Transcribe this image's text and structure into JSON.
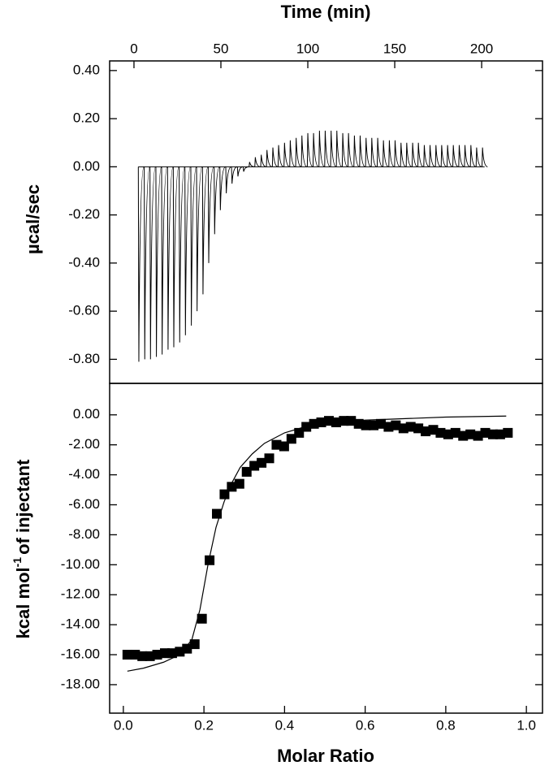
{
  "chart_data": [
    {
      "type": "thermogram",
      "x_label": "Time (min)",
      "y_label": "µcal/sec",
      "xlim": [
        -14,
        235
      ],
      "xticks": [
        0,
        50,
        100,
        150,
        200
      ],
      "ylim": [
        -0.9,
        0.44
      ],
      "yticks": [
        {
          "value": 0.4,
          "label": "0.40"
        },
        {
          "value": 0.2,
          "label": "0.20"
        },
        {
          "value": 0,
          "label": "0.00"
        },
        {
          "value": -0.2,
          "label": "-0.20"
        },
        {
          "value": -0.4,
          "label": "-0.40"
        },
        {
          "value": -0.6,
          "label": "-0.60"
        },
        {
          "value": -0.8,
          "label": "-0.80"
        }
      ],
      "series": [
        {
          "color": "#000000",
          "x": [
            2.5,
            5.9,
            9.2,
            12.6,
            15.9,
            19.3,
            22.6,
            26.0,
            29.3,
            32.7,
            36.0,
            39.4,
            42.7,
            46.1,
            49.4,
            52.8,
            56.1,
            59.5,
            62.8,
            66.2,
            69.5,
            72.9,
            76.2,
            79.6,
            82.9,
            86.3,
            89.6,
            93.0,
            96.3,
            99.7,
            103.0,
            106.4,
            109.7,
            113.1,
            116.4,
            119.8,
            123.1,
            126.5,
            129.8,
            133.2,
            136.5,
            139.9,
            143.2,
            146.6,
            149.9,
            153.3,
            156.6,
            160.0,
            163.3,
            166.7,
            170.0,
            173.4,
            176.7,
            180.1,
            183.4,
            186.8,
            190.1,
            193.5,
            196.8,
            200.2
          ],
          "values": [
            -0.81,
            -0.8,
            -0.8,
            -0.79,
            -0.78,
            -0.76,
            -0.75,
            -0.73,
            -0.7,
            -0.66,
            -0.6,
            -0.53,
            -0.4,
            -0.28,
            -0.18,
            -0.11,
            -0.07,
            -0.04,
            -0.02,
            0.02,
            0.04,
            0.05,
            0.07,
            0.08,
            0.09,
            0.1,
            0.11,
            0.12,
            0.13,
            0.14,
            0.14,
            0.15,
            0.15,
            0.15,
            0.15,
            0.14,
            0.14,
            0.13,
            0.13,
            0.12,
            0.12,
            0.12,
            0.11,
            0.11,
            0.11,
            0.1,
            0.1,
            0.1,
            0.1,
            0.09,
            0.09,
            0.09,
            0.09,
            0.09,
            0.09,
            0.09,
            0.09,
            0.09,
            0.08,
            0.08
          ]
        }
      ]
    },
    {
      "type": "scatter",
      "x_label": "Molar Ratio",
      "y_label": [
        "kcal mol",
        "-1",
        "of injectant"
      ],
      "xlim": [
        -0.034,
        1.04
      ],
      "xticks": [
        {
          "value": 0,
          "label": "0.0"
        },
        0.2,
        0.4,
        0.6,
        0.8,
        {
          "value": 1,
          "label": "1.0"
        }
      ],
      "ylim": [
        -19.9,
        2.1
      ],
      "yticks": [
        {
          "value": 0,
          "label": "0.00"
        },
        {
          "value": -2,
          "label": "-2.00"
        },
        {
          "value": -4,
          "label": "-4.00"
        },
        {
          "value": -6,
          "label": "-6.00"
        },
        {
          "value": -8,
          "label": "-8.00"
        },
        {
          "value": -10,
          "label": "-10.00"
        },
        {
          "value": -12,
          "label": "-12.00"
        },
        {
          "value": -14,
          "label": "-14.00"
        },
        {
          "value": -16,
          "label": "-16.00"
        },
        {
          "value": -18,
          "label": "-18.00"
        }
      ],
      "series": [
        {
          "style": "square",
          "color": "#000000",
          "x": [
            0.01,
            0.029,
            0.047,
            0.066,
            0.084,
            0.103,
            0.121,
            0.14,
            0.158,
            0.177,
            0.195,
            0.214,
            0.232,
            0.251,
            0.269,
            0.288,
            0.306,
            0.325,
            0.343,
            0.362,
            0.38,
            0.399,
            0.417,
            0.436,
            0.454,
            0.473,
            0.491,
            0.51,
            0.528,
            0.547,
            0.565,
            0.584,
            0.602,
            0.621,
            0.639,
            0.658,
            0.676,
            0.695,
            0.713,
            0.732,
            0.75,
            0.769,
            0.787,
            0.806,
            0.824,
            0.843,
            0.861,
            0.88,
            0.898,
            0.917,
            0.935,
            0.954
          ],
          "values": [
            -16.0,
            -16.0,
            -16.1,
            -16.1,
            -16.0,
            -15.9,
            -15.9,
            -15.8,
            -15.6,
            -15.3,
            -13.6,
            -9.7,
            -6.6,
            -5.3,
            -4.8,
            -4.6,
            -3.8,
            -3.4,
            -3.2,
            -2.9,
            -2.0,
            -2.1,
            -1.6,
            -1.2,
            -0.8,
            -0.6,
            -0.5,
            -0.4,
            -0.5,
            -0.4,
            -0.4,
            -0.6,
            -0.7,
            -0.7,
            -0.6,
            -0.8,
            -0.7,
            -0.9,
            -0.8,
            -0.9,
            -1.1,
            -1.0,
            -1.2,
            -1.3,
            -1.2,
            -1.4,
            -1.3,
            -1.4,
            -1.2,
            -1.3,
            -1.3,
            -1.2
          ]
        },
        {
          "style": "line",
          "color": "#000000",
          "x": [
            0.01,
            0.05,
            0.1,
            0.14,
            0.17,
            0.19,
            0.21,
            0.23,
            0.25,
            0.27,
            0.29,
            0.32,
            0.35,
            0.4,
            0.45,
            0.5,
            0.6,
            0.7,
            0.8,
            0.95
          ],
          "values": [
            -17.1,
            -16.9,
            -16.5,
            -16.0,
            -15.0,
            -13.0,
            -10.0,
            -7.5,
            -5.8,
            -4.5,
            -3.5,
            -2.6,
            -1.9,
            -1.2,
            -0.8,
            -0.6,
            -0.35,
            -0.25,
            -0.15,
            -0.08
          ]
        }
      ]
    }
  ]
}
